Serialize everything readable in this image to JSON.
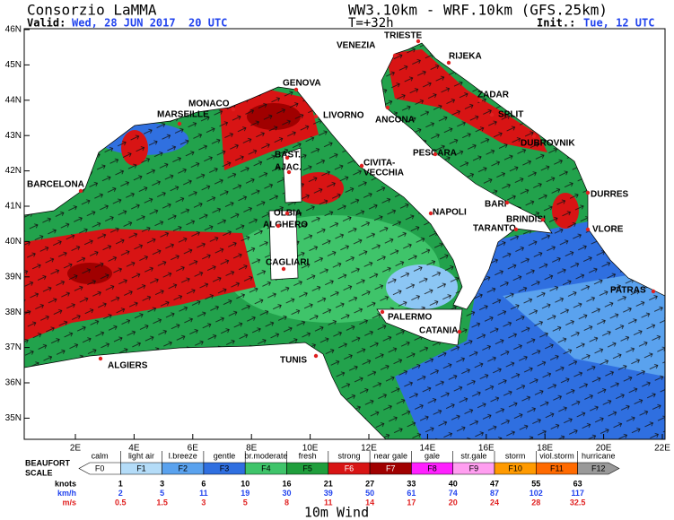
{
  "header": {
    "title": "Consorzio LaMMA",
    "valid_label": "Valid:",
    "valid": "Wed, 28 JUN 2017  20 UTC",
    "model": "WW3.10km - WRF.10km (GFS.25km)",
    "lead": "T=+32h",
    "init_label": "Init.:",
    "init": "Tue, 12 UTC"
  },
  "map": {
    "lat_labels": [
      "46N",
      "45N",
      "44N",
      "43N",
      "42N",
      "41N",
      "40N",
      "39N",
      "38N",
      "37N",
      "36N",
      "35N"
    ],
    "lon_labels": [
      "2E",
      "4E",
      "6E",
      "8E",
      "10E",
      "12E",
      "14E",
      "16E",
      "18E",
      "20E",
      "22E"
    ],
    "cities": [
      {
        "name": "TRIESTE"
      },
      {
        "name": "VENEZIA"
      },
      {
        "name": "RIJEKA"
      },
      {
        "name": "GENOVA"
      },
      {
        "name": "MONACO"
      },
      {
        "name": "MARSEILLE"
      },
      {
        "name": "LIVORNO"
      },
      {
        "name": "ZADAR"
      },
      {
        "name": "ANCONA"
      },
      {
        "name": "SPLIT"
      },
      {
        "name": "DUBROVNIK"
      },
      {
        "name": "BAST."
      },
      {
        "name": "PESCARA"
      },
      {
        "name": "AJAC."
      },
      {
        "name": "CIVITA-"
      },
      {
        "name": "VECCHIA"
      },
      {
        "name": "BARCELONA"
      },
      {
        "name": "DURRES"
      },
      {
        "name": "BARI"
      },
      {
        "name": "OLBIA"
      },
      {
        "name": "NAPOLI"
      },
      {
        "name": "BRINDISI"
      },
      {
        "name": "ALGHERO"
      },
      {
        "name": "TARANTO"
      },
      {
        "name": "VLORE"
      },
      {
        "name": "CAGLIARI"
      },
      {
        "name": "PATRAS"
      },
      {
        "name": "PALERMO"
      },
      {
        "name": "CATANIA"
      },
      {
        "name": "TUNIS"
      },
      {
        "name": "ALGIERS"
      }
    ]
  },
  "legend": {
    "scale_label": [
      "BEAUFORT",
      "SCALE"
    ],
    "forces": [
      {
        "label": "F0",
        "description": "calm"
      },
      {
        "label": "F1",
        "description": "light air"
      },
      {
        "label": "F2",
        "description": "l.breeze"
      },
      {
        "label": "F3",
        "description": "gentle"
      },
      {
        "label": "F4",
        "description": "br.moderate"
      },
      {
        "label": "F5",
        "description": "fresh"
      },
      {
        "label": "F6",
        "description": "strong"
      },
      {
        "label": "F7",
        "description": "near gale"
      },
      {
        "label": "F8",
        "description": "gale"
      },
      {
        "label": "F9",
        "description": "str.gale"
      },
      {
        "label": "F10",
        "description": "storm"
      },
      {
        "label": "F11",
        "description": "viol.storm"
      },
      {
        "label": "F12",
        "description": "hurricane"
      }
    ],
    "rows": [
      {
        "label": "knots",
        "values": [
          "1",
          "3",
          "6",
          "10",
          "16",
          "21",
          "27",
          "33",
          "40",
          "47",
          "55",
          "63"
        ]
      },
      {
        "label": "km/h",
        "values": [
          "2",
          "5",
          "11",
          "19",
          "30",
          "39",
          "50",
          "61",
          "74",
          "87",
          "102",
          "117"
        ]
      },
      {
        "label": "m/s",
        "values": [
          "0.5",
          "1.5",
          "3",
          "5",
          "8",
          "11",
          "14",
          "17",
          "20",
          "24",
          "28",
          "32.5"
        ]
      }
    ]
  },
  "footer": "10m Wind"
}
